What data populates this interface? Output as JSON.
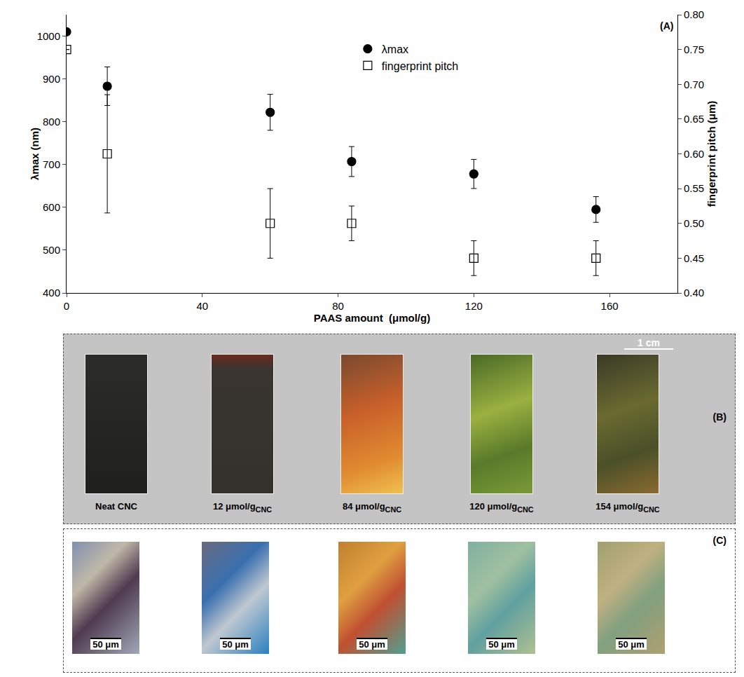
{
  "chart_data": {
    "type": "scatter",
    "panel": "(A)",
    "xlabel": "PAAS amount  (μmol/g)",
    "ylabel": "λmax (nm)",
    "y2label": "fingerprint pitch (μm)",
    "xlim": [
      0,
      180
    ],
    "xticks": [
      0,
      40,
      80,
      120,
      160
    ],
    "ylim": [
      400,
      1050
    ],
    "yticks": [
      400,
      500,
      600,
      700,
      800,
      900,
      1000
    ],
    "y2lim": [
      0.4,
      0.8
    ],
    "y2ticks": [
      {
        "value": 0.4,
        "label": "0.40"
      },
      {
        "value": 0.45,
        "label": "0.45"
      },
      {
        "value": 0.5,
        "label": "0.50"
      },
      {
        "value": 0.55,
        "label": "0.55"
      },
      {
        "value": 0.6,
        "label": "0.60"
      },
      {
        "value": 0.65,
        "label": "0.65"
      },
      {
        "value": 0.7,
        "label": "0.70"
      },
      {
        "value": 0.75,
        "label": "0.75"
      },
      {
        "value": 0.8,
        "label": "0.80"
      }
    ],
    "grid": false,
    "legend": "top",
    "x": [
      0,
      12,
      60,
      84,
      120,
      156
    ],
    "series": [
      {
        "name": "λmax",
        "color": "#000000",
        "marker": "circle",
        "values": [
          1010,
          883,
          822,
          707,
          678,
          595
        ],
        "errors": [
          null,
          45,
          42,
          35,
          34,
          30
        ]
      },
      {
        "name": "fingerprint pitch",
        "color": "#000000",
        "marker": "square-open",
        "axis": "y2",
        "values": [
          0.75,
          0.6,
          0.5,
          0.5,
          0.45,
          0.45
        ],
        "errors": [
          null,
          0.085,
          0.05,
          0.025,
          0.025,
          0.025
        ]
      }
    ]
  },
  "photos": {
    "B": {
      "panel": "(B)",
      "scale_bar": "1 cm",
      "samples": [
        {
          "label": "Neat CNC"
        },
        {
          "label": "12 μmol/g",
          "subscript": "CNC"
        },
        {
          "label": "84 μmol/g",
          "subscript": "CNC"
        },
        {
          "label": "120 μmol/g",
          "subscript": "CNC"
        },
        {
          "label": "154 μmol/g",
          "subscript": "CNC"
        }
      ]
    },
    "C": {
      "panel": "(C)",
      "scale_bars": [
        "50 μm",
        "50 μm",
        "50 μm",
        "50 μm",
        "50 μm"
      ]
    }
  }
}
